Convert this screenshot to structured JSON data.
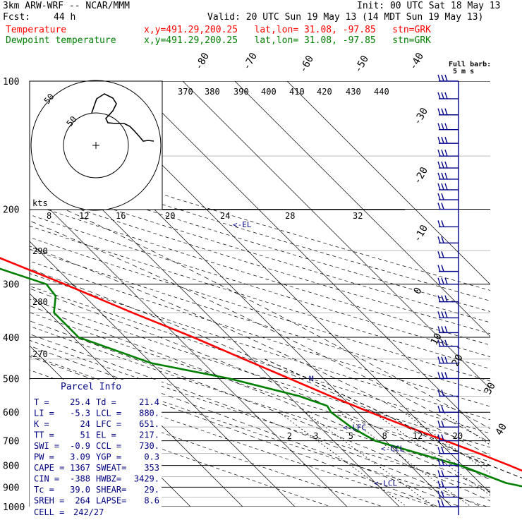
{
  "header": {
    "model": "3km ARW-WRF -- NCAR/MMM",
    "init": "Init: 00 UTC Sat 18 May 13",
    "fcst_label": "Fcst:",
    "fcst_value": "44 h",
    "valid": "Valid: 20 UTC Sun 19 May 13 (14 MDT Sun 19 May 13)",
    "temp_label": "Temperature",
    "dew_label": "Dewpoint temperature",
    "point_info": "x,y=491.29,200.25   lat,lon= 31.08, -97.85   stn=GRK",
    "full_barb_label": "Full barb:",
    "full_barb_value": "5 m s"
  },
  "colors": {
    "temperature": "#ff0000",
    "dewpoint": "#008000",
    "parcel_text": "#000080",
    "barbs": "#00008b",
    "grid": "#000000"
  },
  "chart_data": {
    "type": "line",
    "chart_kind": "Skew-T log-P diagram",
    "y_axis": "pressure (hPa), log scale, inverted",
    "y_ticks": [
      "100",
      "200",
      "300",
      "400",
      "500",
      "600",
      "700",
      "800",
      "900",
      "1000"
    ],
    "ylim": [
      1050,
      100
    ],
    "isotherm_labels": [
      "-80",
      "-70",
      "-60",
      "-50",
      "-40",
      "-30",
      "-20",
      "-10",
      "0",
      "10",
      "20",
      "30",
      "40"
    ],
    "isotherm_values": [
      -80,
      -70,
      -60,
      -50,
      -40,
      -30,
      -20,
      -10,
      0,
      10,
      20,
      30,
      40
    ],
    "theta_labels": [
      "370",
      "380",
      "390",
      "400",
      "410",
      "420",
      "430",
      "440"
    ],
    "theta_values": [
      370,
      380,
      390,
      400,
      410,
      420,
      430,
      440
    ],
    "mixing_ratio_labels": [
      "2",
      "3",
      "5",
      "8",
      "12",
      "20"
    ],
    "mixing_ratio_values": [
      2,
      3,
      5,
      8,
      12,
      20
    ],
    "dry_adiabat_labels": [
      "290",
      "280",
      "270"
    ],
    "dry_adiabat_values": [
      290,
      280,
      270
    ],
    "series": [
      {
        "name": "Temperature",
        "color": "#ff0000",
        "points": [
          [
            1010,
            28
          ],
          [
            1000,
            25.4
          ],
          [
            960,
            23.5
          ],
          [
            940,
            25
          ],
          [
            900,
            24.4
          ],
          [
            850,
            22
          ],
          [
            800,
            19
          ],
          [
            750,
            15.5
          ],
          [
            700,
            11.5
          ],
          [
            650,
            7
          ],
          [
            600,
            2.5
          ],
          [
            550,
            -2
          ],
          [
            500,
            -6.5
          ],
          [
            450,
            -11.5
          ],
          [
            400,
            -17
          ],
          [
            350,
            -24
          ],
          [
            300,
            -31.5
          ],
          [
            250,
            -41
          ],
          [
            220,
            -47.5
          ],
          [
            200,
            -52
          ],
          [
            180,
            -56
          ],
          [
            160,
            -59
          ],
          [
            140,
            -62
          ],
          [
            120,
            -63
          ],
          [
            110,
            -64
          ],
          [
            100,
            -66
          ]
        ]
      },
      {
        "name": "Dewpoint temperature",
        "color": "#008000",
        "points": [
          [
            960,
            21
          ],
          [
            930,
            21.4
          ],
          [
            900,
            18
          ],
          [
            880,
            15
          ],
          [
            850,
            13
          ],
          [
            820,
            11
          ],
          [
            800,
            9.5
          ],
          [
            750,
            4
          ],
          [
            700,
            -2
          ],
          [
            650,
            -4
          ],
          [
            600,
            -5
          ],
          [
            580,
            -4.5
          ],
          [
            550,
            -8
          ],
          [
            500,
            -18
          ],
          [
            460,
            -30
          ],
          [
            400,
            -39
          ],
          [
            350,
            -39
          ],
          [
            320,
            -35.5
          ],
          [
            300,
            -35
          ],
          [
            250,
            -48
          ],
          [
            230,
            -54
          ],
          [
            200,
            -60
          ],
          [
            180,
            -63
          ],
          [
            160,
            -65
          ],
          [
            140,
            -69
          ],
          [
            120,
            -73
          ],
          [
            110,
            -76
          ],
          [
            100,
            -79
          ]
        ]
      },
      {
        "name": "Parcel",
        "color": "#000000",
        "dashed": true,
        "points": [
          [
            960,
            25.4
          ],
          [
            880,
            20.5
          ],
          [
            760,
            12.5
          ],
          [
            700,
            10
          ],
          [
            600,
            4.5
          ],
          [
            500,
            -3
          ],
          [
            450,
            -7.5
          ]
        ]
      }
    ],
    "level_markers": [
      {
        "label": "<-EL",
        "pressure": 217
      },
      {
        "label": "<-LFC",
        "pressure": 651
      },
      {
        "label": "<-CCL",
        "pressure": 730
      },
      {
        "label": "<-LCL",
        "pressure": 880
      },
      {
        "label": "M",
        "pressure": 500
      }
    ]
  },
  "hodograph": {
    "units_label": "kts",
    "ring_labels": [
      "50",
      "50"
    ],
    "ring_values": [
      50,
      50
    ],
    "speed_axis_labels": [
      "8",
      "12",
      "16",
      "20",
      "24",
      "28",
      "32"
    ],
    "speed_axis_values": [
      8,
      12,
      16,
      20,
      24,
      28,
      32
    ]
  },
  "parcel_info": {
    "title": "Parcel Info",
    "rows": [
      {
        "l1": "T    =",
        "v1": "25.4",
        "l2": "Td  =",
        "v2": "21.4"
      },
      {
        "l1": "LI   =",
        "v1": "-5.3",
        "l2": "LCL =",
        "v2": "880."
      },
      {
        "l1": "K    =",
        "v1": "24",
        "l2": "LFC =",
        "v2": "651."
      },
      {
        "l1": "TT   =",
        "v1": "51",
        "l2": "EL  =",
        "v2": "217."
      },
      {
        "l1": "SWI  =",
        "v1": "-0.9",
        "l2": "CCL =",
        "v2": "730."
      },
      {
        "l1": "PW   =",
        "v1": "3.09",
        "l2": "YGP =",
        "v2": "0.3"
      },
      {
        "l1": "CAPE =",
        "v1": "1367",
        "l2": "SWEAT=",
        "v2": "353"
      },
      {
        "l1": "CIN  =",
        "v1": "-388",
        "l2": "HWBZ=",
        "v2": "3429."
      },
      {
        "l1": "Tc   =",
        "v1": "39.0",
        "l2": "SHEAR=",
        "v2": "29."
      },
      {
        "l1": "SREH =",
        "v1": "264",
        "l2": "LAPSE=",
        "v2": "8.6"
      }
    ],
    "cell_label": "CELL =",
    "cell_value": "242/27"
  },
  "wind_barbs": {
    "pressures": [
      100,
      110,
      120,
      130,
      140,
      150,
      160,
      170,
      180,
      190,
      200,
      220,
      240,
      260,
      280,
      300,
      330,
      360,
      390,
      420,
      460,
      500,
      550,
      600,
      650,
      700,
      750,
      800,
      850,
      900,
      950,
      1000
    ],
    "barb_counts": [
      3,
      3,
      3,
      3,
      3,
      3,
      3,
      3,
      3,
      2,
      2,
      2,
      2,
      2,
      2,
      3,
      3,
      3,
      3,
      3,
      3,
      3,
      2,
      2,
      2,
      2,
      2,
      2,
      2,
      2,
      2,
      2
    ]
  }
}
